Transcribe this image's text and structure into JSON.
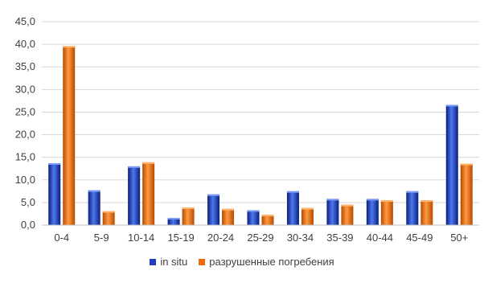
{
  "chart_data": {
    "type": "bar",
    "categories": [
      "0-4",
      "5-9",
      "10-14",
      "15-19",
      "20-24",
      "25-29",
      "30-34",
      "35-39",
      "40-44",
      "45-49",
      "50+"
    ],
    "series": [
      {
        "name": "in situ",
        "color": "#1f3fbf",
        "values": [
          13.7,
          7.7,
          13.0,
          1.6,
          6.8,
          3.3,
          7.5,
          5.8,
          5.8,
          7.5,
          26.6
        ]
      },
      {
        "name": "разрушенные погребения",
        "color": "#ee6a0f",
        "values": [
          39.6,
          3.1,
          13.9,
          3.9,
          3.6,
          2.3,
          3.8,
          4.5,
          5.5,
          5.5,
          13.6
        ]
      }
    ],
    "y_ticks": [
      "0,0",
      "5,0",
      "10,0",
      "15,0",
      "20,0",
      "25,0",
      "30,0",
      "35,0",
      "40,0",
      "45,0"
    ],
    "ylim": [
      0,
      45
    ],
    "grid": true,
    "legend_position": "bottom",
    "title": "",
    "xlabel": "",
    "ylabel": ""
  }
}
